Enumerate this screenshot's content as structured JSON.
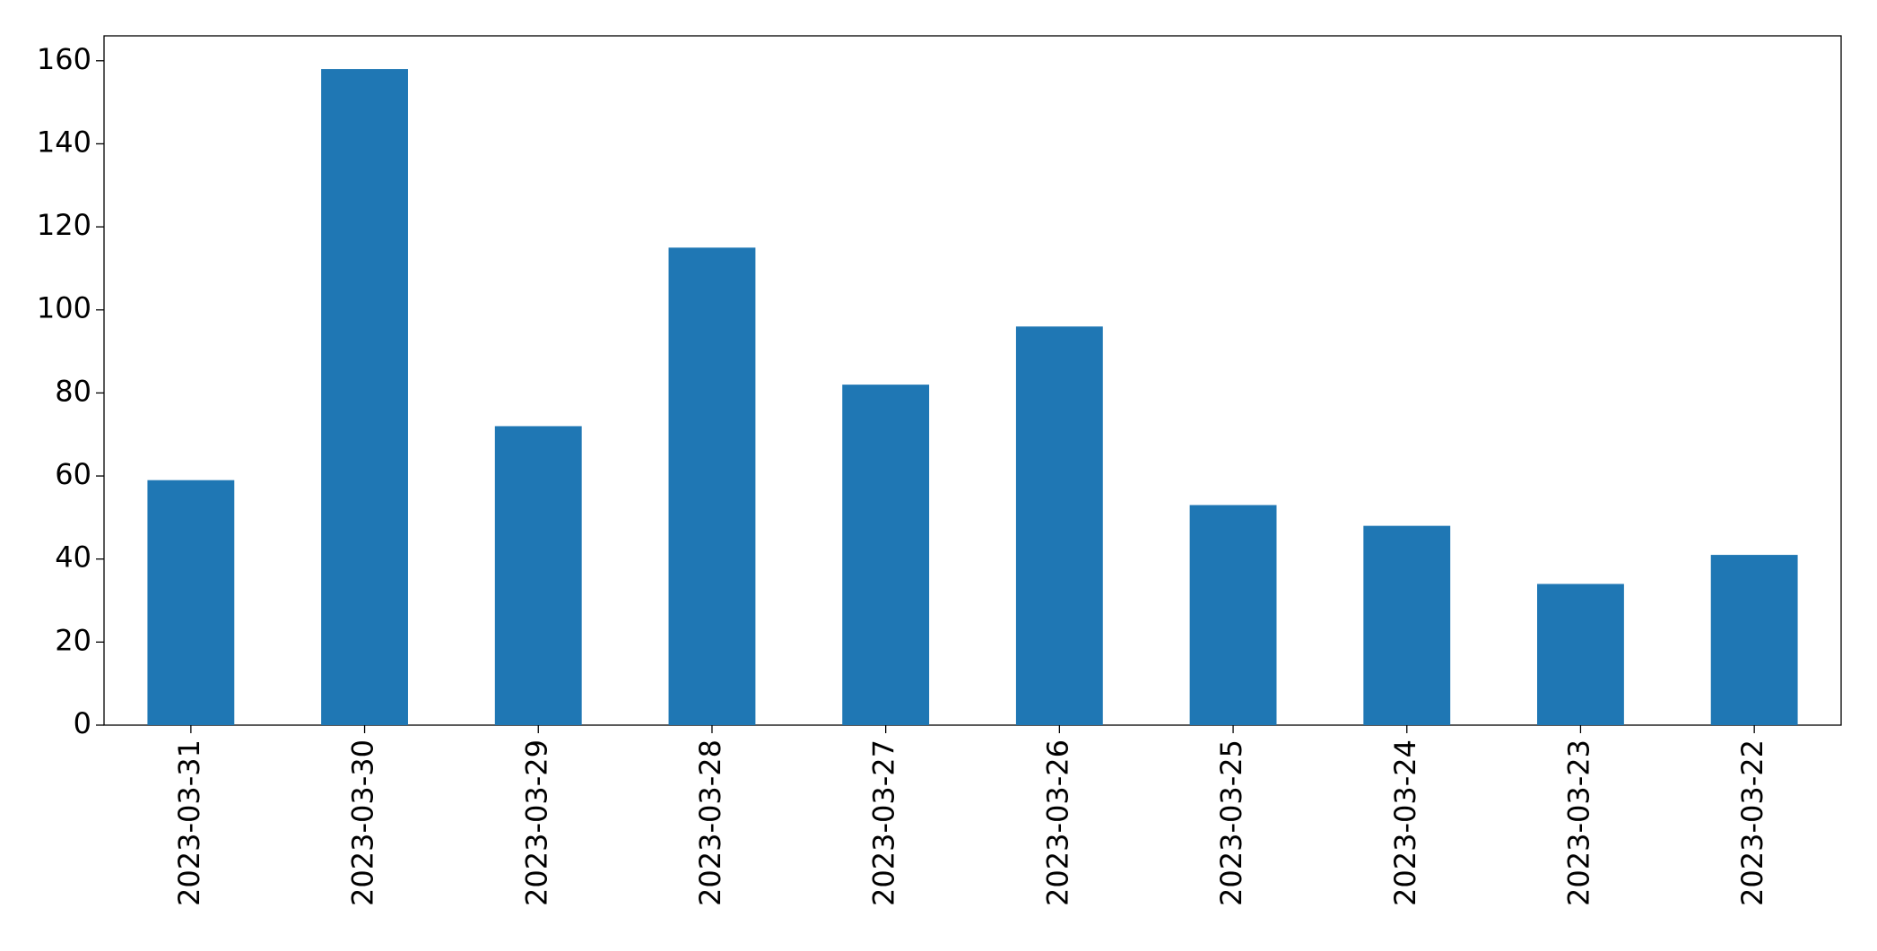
{
  "chart_data": {
    "type": "bar",
    "categories": [
      "2023-03-31",
      "2023-03-30",
      "2023-03-29",
      "2023-03-28",
      "2023-03-27",
      "2023-03-26",
      "2023-03-25",
      "2023-03-24",
      "2023-03-23",
      "2023-03-22"
    ],
    "values": [
      59,
      158,
      72,
      115,
      82,
      96,
      53,
      48,
      34,
      41
    ],
    "color": "#1f77b4",
    "ylim": [
      0,
      166
    ],
    "yticks": [
      0,
      20,
      40,
      60,
      80,
      100,
      120,
      140,
      160
    ],
    "grid": false
  }
}
